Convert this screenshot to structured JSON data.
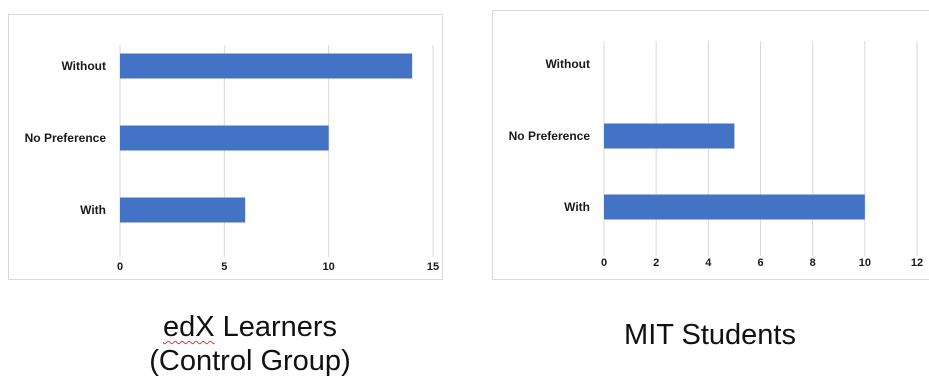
{
  "chart_data": [
    {
      "type": "bar",
      "orientation": "horizontal",
      "title": "",
      "xlabel": "",
      "ylabel": "",
      "categories": [
        "Without",
        "No Preference",
        "With"
      ],
      "values": [
        14,
        10,
        6
      ],
      "xlim": [
        0,
        15
      ],
      "xticks": [
        "0",
        "5",
        "10",
        "15"
      ],
      "grid": true,
      "bar_color": "#4472C4",
      "grid_color": "#d9d9d9"
    },
    {
      "type": "bar",
      "orientation": "horizontal",
      "title": "",
      "xlabel": "",
      "ylabel": "",
      "categories": [
        "Without",
        "No Preference",
        "With"
      ],
      "values": [
        0,
        5,
        10
      ],
      "xlim": [
        0,
        12
      ],
      "xticks": [
        "0",
        "2",
        "4",
        "6",
        "8",
        "10",
        "12"
      ],
      "grid": true,
      "bar_color": "#4472C4",
      "grid_color": "#d9d9d9"
    }
  ],
  "captions": {
    "left_line1_word": "edX",
    "left_line1_rest": " Learners",
    "left_line2": "(Control Group)",
    "right": "MIT Students"
  }
}
